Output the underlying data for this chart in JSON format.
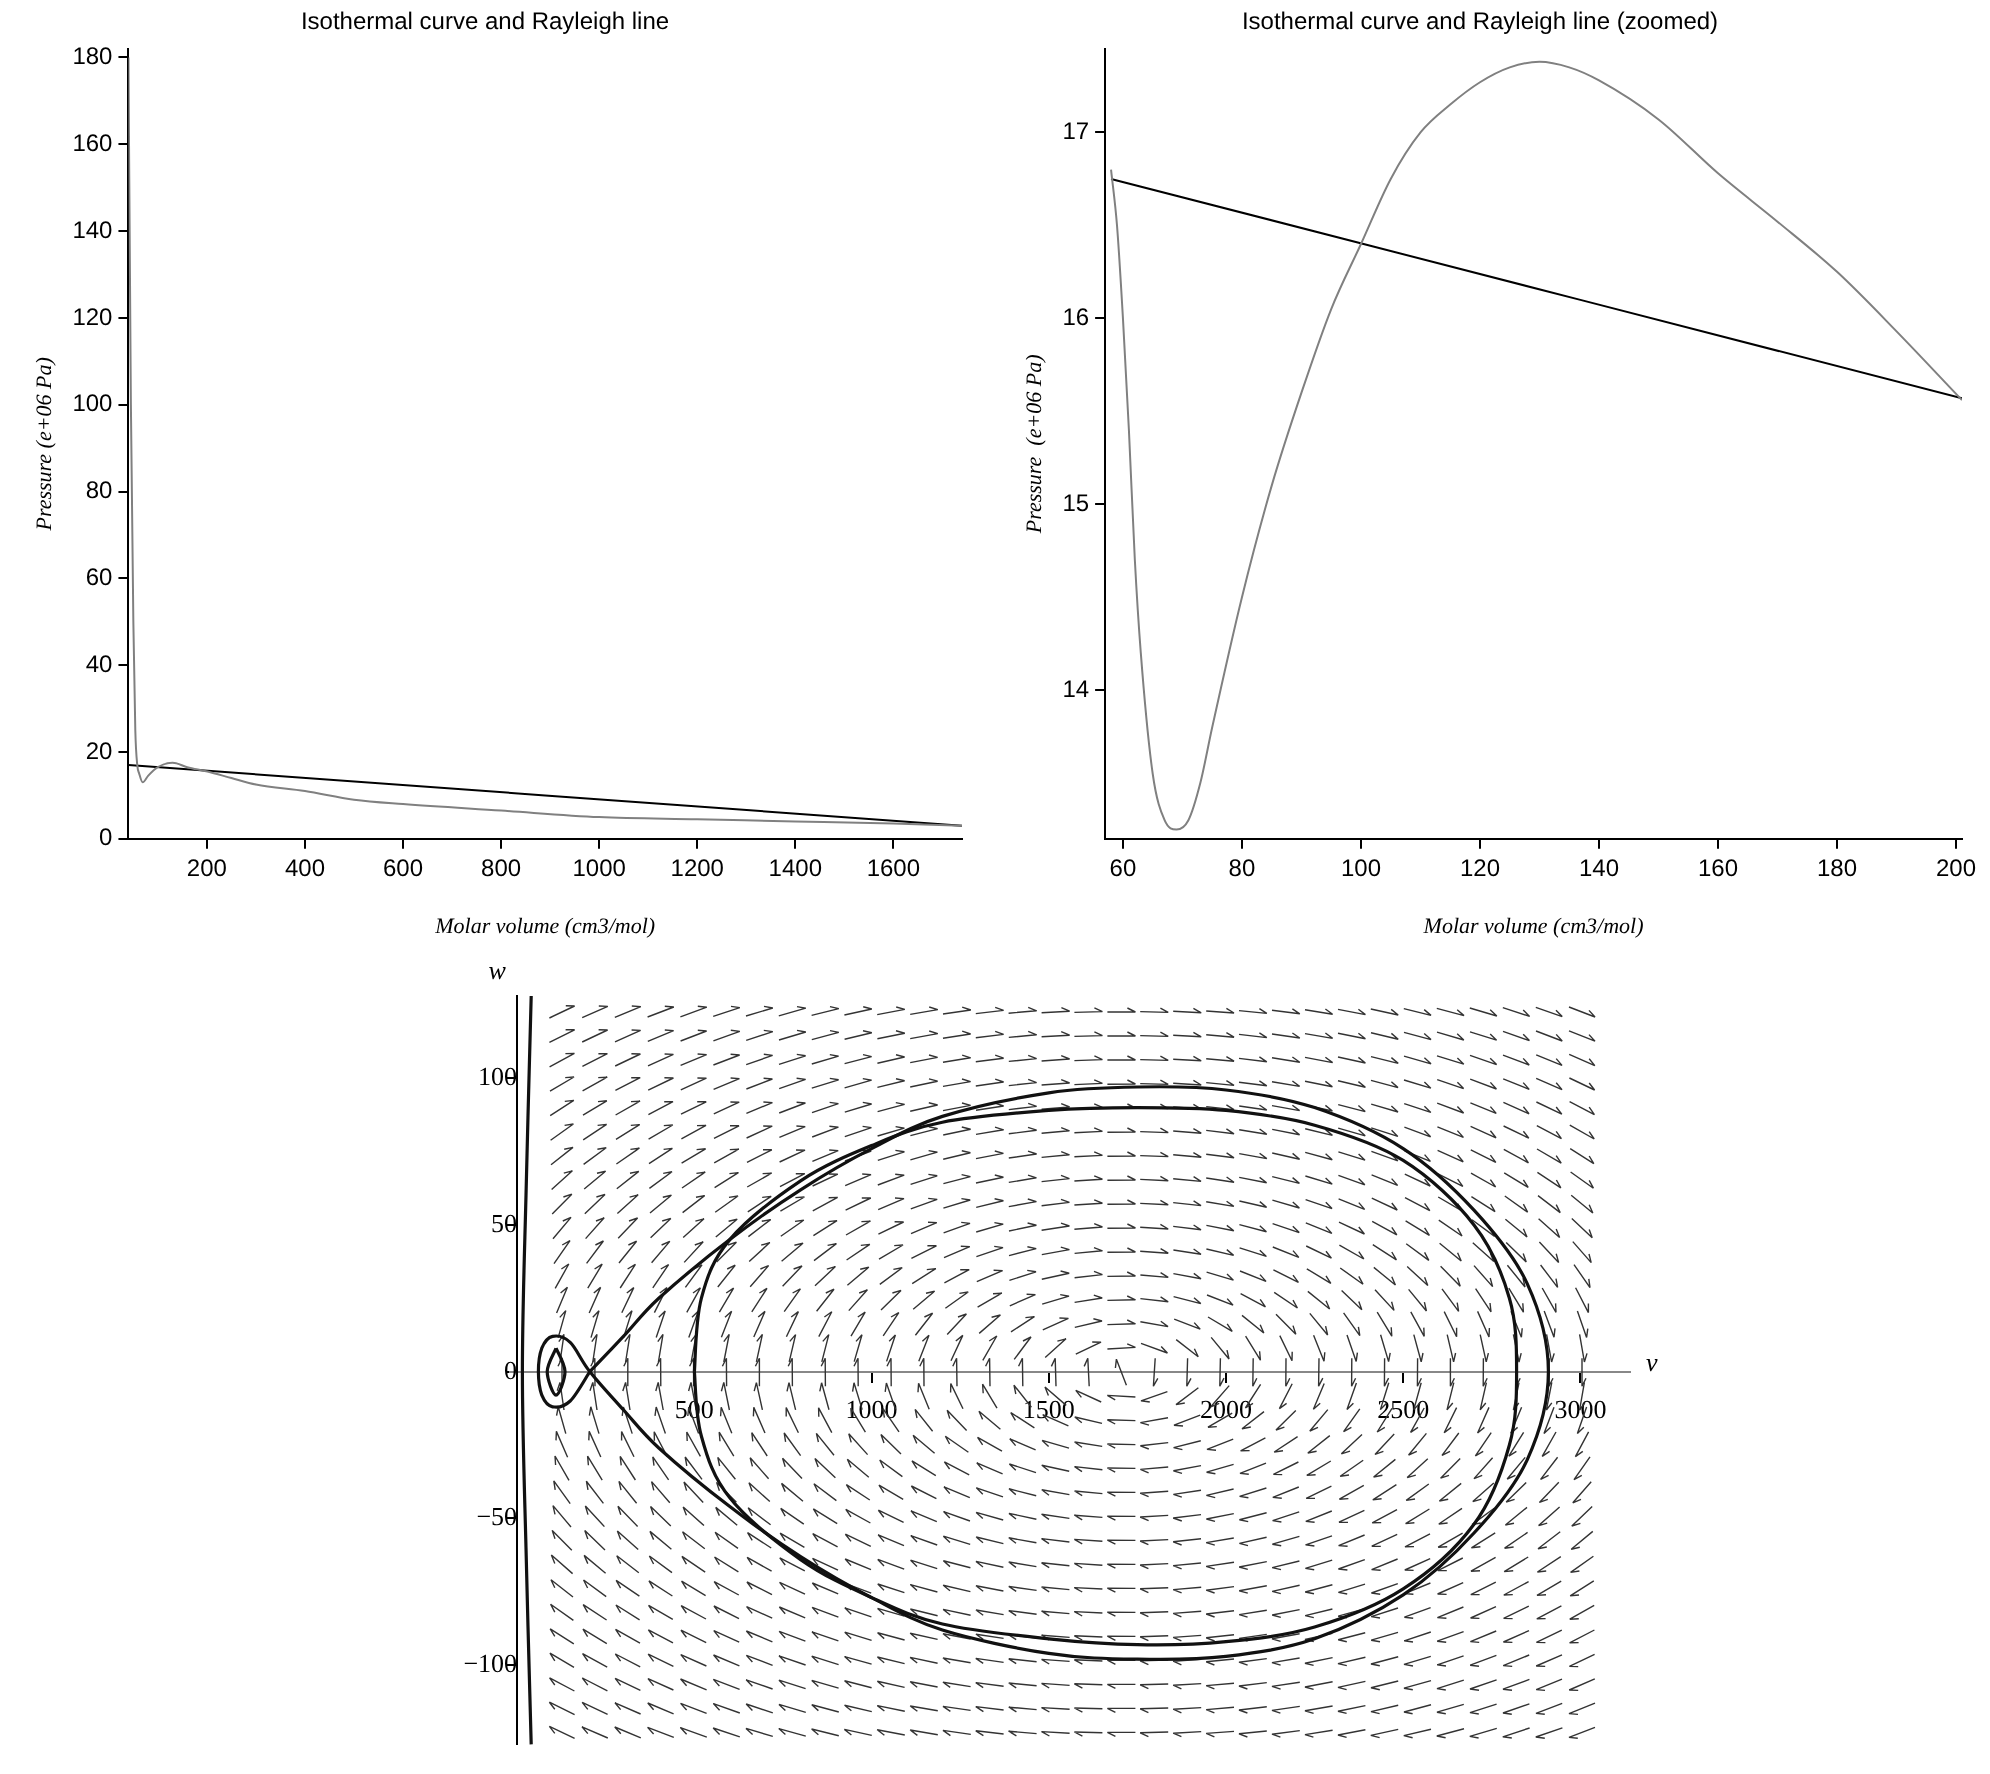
{
  "chart_data": [
    {
      "type": "line",
      "title": "Isothermal curve and Rayleigh line",
      "xlabel": "Molar volume (cm3/mol)",
      "ylabel": "Pressure (e+06 Pa)",
      "xlim": [
        40,
        1740
      ],
      "ylim": [
        0,
        182
      ],
      "xticks": [
        200,
        400,
        600,
        800,
        1000,
        1200,
        1400,
        1600
      ],
      "yticks": [
        0,
        20,
        40,
        60,
        80,
        100,
        120,
        140,
        160,
        180
      ],
      "series": [
        {
          "color": "#808080",
          "x": [
            40,
            45,
            50,
            54,
            58,
            62,
            69,
            80,
            100,
            130,
            160,
            201,
            250,
            300,
            400,
            500,
            600,
            800,
            1000,
            1200,
            1400,
            1600,
            1740
          ],
          "values": [
            180,
            100,
            50,
            25,
            17,
            15,
            13,
            14.5,
            16.5,
            17.5,
            16.5,
            15.5,
            14,
            12.5,
            11,
            9,
            8,
            6.5,
            5,
            4.5,
            4,
            3.5,
            3
          ]
        },
        {
          "color": "#000000",
          "x": [
            40,
            1740
          ],
          "values": [
            17,
            3
          ]
        }
      ]
    },
    {
      "type": "line",
      "title": "Isothermal curve and Rayleigh line (zoomed)",
      "xlabel": "Molar volume (cm3/mol)",
      "ylabel": "Pressure  (e+06 Pa)",
      "xlim": [
        57,
        201
      ],
      "ylim": [
        13.2,
        17.45
      ],
      "xticks": [
        60,
        80,
        100,
        120,
        140,
        160,
        180,
        200
      ],
      "yticks": [
        14,
        15,
        16,
        17
      ],
      "series": [
        {
          "color": "#808080",
          "x": [
            58,
            59,
            60,
            61,
            62,
            63,
            65,
            67,
            69,
            71,
            73,
            75,
            80,
            85,
            90,
            95,
            100,
            105,
            110,
            115,
            120,
            125,
            130,
            135,
            140,
            150,
            160,
            170,
            180,
            190,
            201
          ],
          "values": [
            16.8,
            16.5,
            16,
            15.4,
            14.7,
            14.2,
            13.55,
            13.3,
            13.25,
            13.3,
            13.5,
            13.8,
            14.5,
            15.1,
            15.6,
            16.05,
            16.4,
            16.75,
            17,
            17.15,
            17.27,
            17.35,
            17.38,
            17.35,
            17.28,
            17.07,
            16.78,
            16.52,
            16.25,
            15.93,
            15.56
          ]
        },
        {
          "color": "#000000",
          "x": [
            58,
            201
          ],
          "values": [
            16.75,
            15.57
          ]
        }
      ]
    },
    {
      "type": "line",
      "xlabel": "v",
      "ylabel": "w",
      "xlim": [
        -20,
        3140
      ],
      "ylim": [
        -127,
        128
      ],
      "xticks": [
        500,
        1000,
        1500,
        2000,
        2500,
        3000
      ],
      "yticks": [
        {
          "value": -100,
          "label": "−100"
        },
        {
          "value": -50,
          "label": "−50"
        },
        0,
        50,
        100
      ]
    }
  ]
}
